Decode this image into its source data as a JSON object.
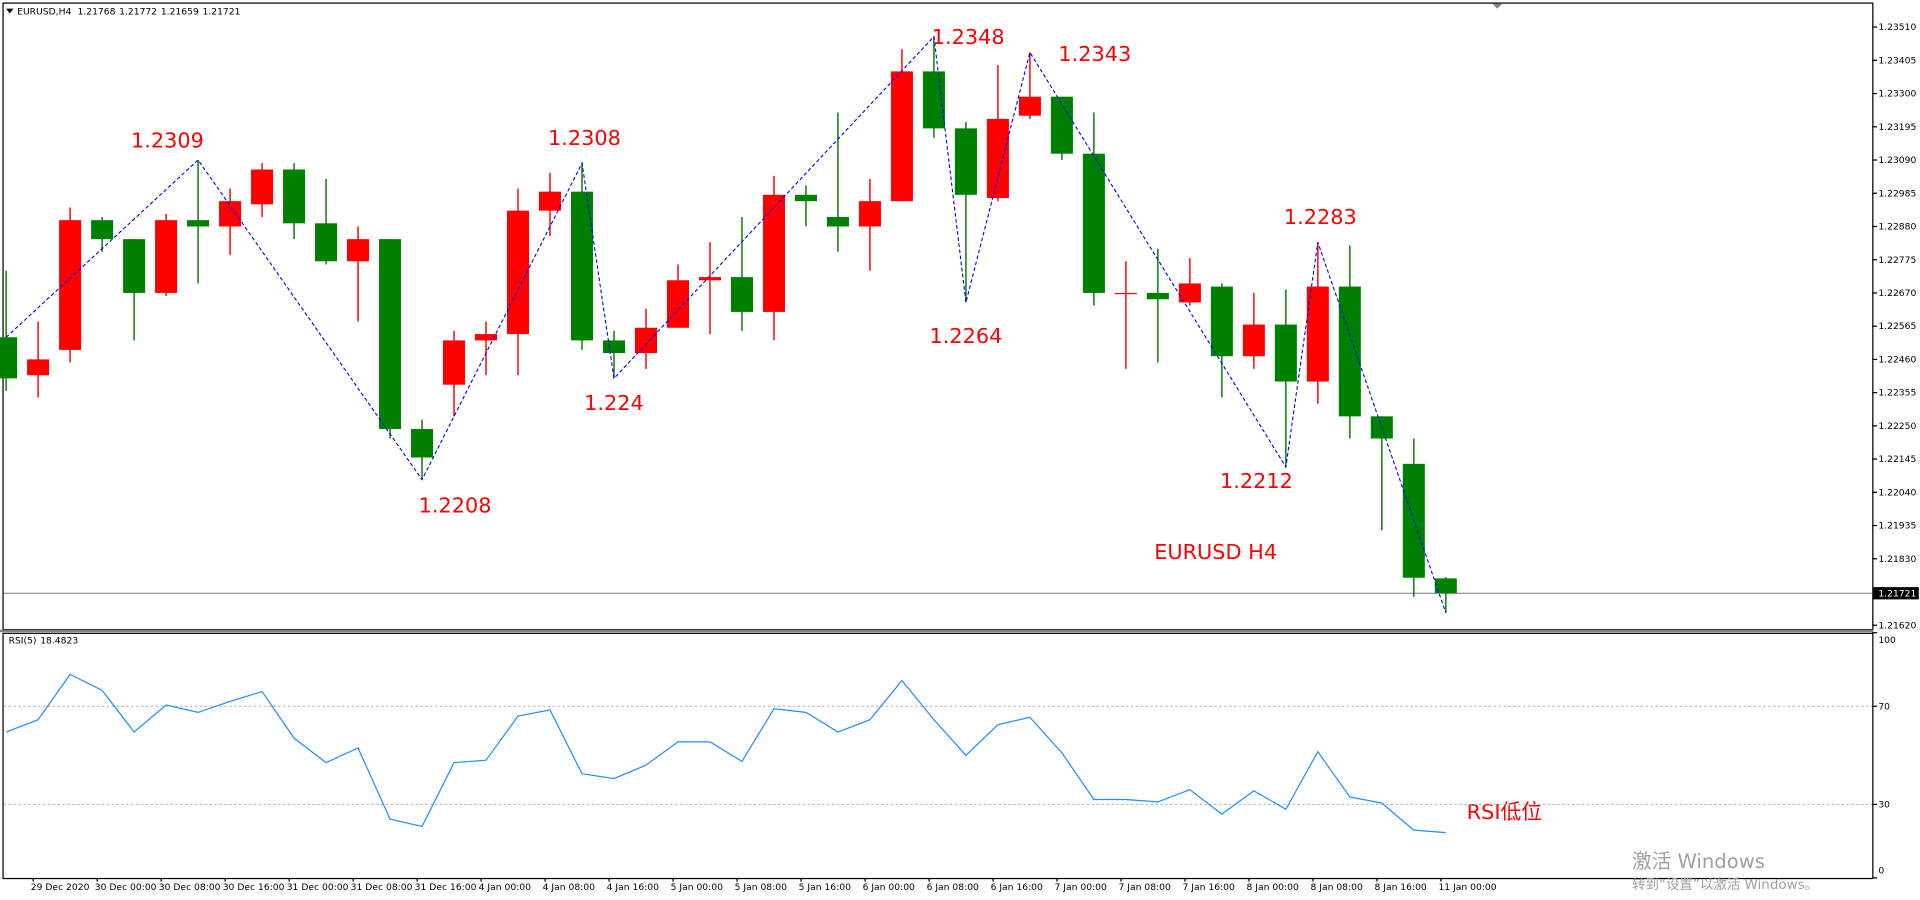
{
  "chart_data": [
    {
      "type": "candlestick",
      "title": "EURUSD,H4",
      "categories": [
        null,
        "29 Dec 2020",
        null,
        "30 Dec 00:00",
        null,
        "30 Dec 08:00",
        null,
        "30 Dec 16:00",
        null,
        "31 Dec 00:00",
        null,
        "31 Dec 08:00",
        null,
        "31 Dec 16:00",
        null,
        "4 Jan 00:00",
        null,
        "4 Jan 08:00",
        null,
        "4 Jan 16:00",
        null,
        "5 Jan 00:00",
        null,
        "5 Jan 08:00",
        null,
        "5 Jan 16:00",
        null,
        "6 Jan 00:00",
        null,
        "6 Jan 08:00",
        null,
        "6 Jan 16:00",
        null,
        "7 Jan 00:00",
        null,
        "7 Jan 08:00",
        null,
        "7 Jan 16:00",
        null,
        "8 Jan 00:00",
        null,
        "8 Jan 08:00",
        null,
        "8 Jan 16:00",
        null,
        "11 Jan 00:00"
      ],
      "open": [
        1.2253,
        1.2241,
        1.2249,
        1.229,
        1.2284,
        1.2267,
        1.229,
        1.2288,
        1.2295,
        1.2306,
        1.2289,
        1.2277,
        1.2284,
        1.2224,
        1.2238,
        1.2252,
        1.2254,
        1.2293,
        1.2299,
        1.2252,
        1.2248,
        1.2256,
        1.2271,
        1.2272,
        1.2261,
        1.2298,
        1.2291,
        1.2288,
        1.2296,
        1.2337,
        1.2319,
        1.2297,
        1.2323,
        1.2329,
        1.2311,
        1.2267,
        1.2267,
        1.2264,
        1.2269,
        1.2247,
        1.2257,
        1.2239,
        1.2269,
        1.2228,
        1.2213,
        1.21768
      ],
      "high": [
        1.2274,
        1.2258,
        1.2294,
        1.2291,
        1.2284,
        1.2292,
        1.2309,
        1.23,
        1.2308,
        1.2308,
        1.2303,
        1.2288,
        1.2284,
        1.2227,
        1.2255,
        1.2258,
        1.23,
        1.2305,
        1.2308,
        1.2255,
        1.2262,
        1.2276,
        1.2283,
        1.2291,
        1.2304,
        1.2301,
        1.2324,
        1.2303,
        1.2344,
        1.2348,
        1.2321,
        1.2339,
        1.2343,
        1.2329,
        1.2324,
        1.2277,
        1.2281,
        1.2278,
        1.227,
        1.2267,
        1.2268,
        1.2283,
        1.2282,
        1.2228,
        1.2221,
        1.21772
      ],
      "low": [
        1.2236,
        1.2234,
        1.2245,
        1.228,
        1.2252,
        1.2266,
        1.227,
        1.2279,
        1.2291,
        1.2284,
        1.2276,
        1.2258,
        1.2221,
        1.2208,
        1.2228,
        1.2241,
        1.2241,
        1.2285,
        1.2249,
        1.224,
        1.2243,
        1.2256,
        1.2254,
        1.2255,
        1.2252,
        1.2288,
        1.228,
        1.2274,
        1.2296,
        1.2316,
        1.2264,
        1.2296,
        1.2322,
        1.2309,
        1.2263,
        1.2243,
        1.2245,
        1.2263,
        1.2234,
        1.2243,
        1.2212,
        1.2232,
        1.2221,
        1.2192,
        1.2171,
        1.21659
      ],
      "close": [
        1.224,
        1.2246,
        1.229,
        1.2284,
        1.2267,
        1.229,
        1.2288,
        1.2296,
        1.2306,
        1.2289,
        1.2277,
        1.2284,
        1.2224,
        1.2215,
        1.2252,
        1.2254,
        1.2293,
        1.2299,
        1.2252,
        1.2248,
        1.2256,
        1.2271,
        1.2272,
        1.2261,
        1.2298,
        1.2296,
        1.2288,
        1.2296,
        1.2337,
        1.2319,
        1.2298,
        1.2322,
        1.2329,
        1.2311,
        1.2267,
        1.2267,
        1.2265,
        1.227,
        1.2247,
        1.2257,
        1.2239,
        1.2269,
        1.2228,
        1.2221,
        1.2177,
        1.21721
      ],
      "up_color": "#ff0000",
      "down_color": "#008000",
      "ylim": [
        1.21608,
        1.23584
      ],
      "yticks": [
        {
          "value": 1.2351,
          "label": "1.23510"
        },
        1.23405,
        {
          "value": 1.233,
          "label": "1.23300"
        },
        1.23195,
        {
          "value": 1.2309,
          "label": "1.23090"
        },
        1.22985,
        {
          "value": 1.2288,
          "label": "1.22880"
        },
        1.22775,
        {
          "value": 1.2267,
          "label": "1.22670"
        },
        1.22565,
        {
          "value": 1.2246,
          "label": "1.22460"
        },
        1.22355,
        {
          "value": 1.2225,
          "label": "1.22250"
        },
        1.22145,
        {
          "value": 1.2204,
          "label": "1.22040"
        },
        1.21935,
        {
          "value": 1.2183,
          "label": "1.21830"
        },
        {
          "value": 1.2162,
          "label": "1.21620"
        }
      ],
      "zigzag": {
        "color": "#0000ff",
        "x": [
          0,
          6,
          13,
          18,
          19,
          29,
          30,
          32,
          40,
          41,
          45
        ],
        "values": [
          1.2253,
          1.2309,
          1.2208,
          1.2308,
          1.224,
          1.2348,
          1.2264,
          1.2343,
          1.2212,
          1.2283,
          1.21659
        ],
        "labeled": [
          false,
          true,
          true,
          true,
          true,
          true,
          true,
          true,
          true,
          true,
          false
        ]
      },
      "annotation": "EURUSD H4"
    },
    {
      "type": "line",
      "title": "RSI(5)",
      "color": "#1e90ff",
      "values": [
        59.5,
        64.5,
        83,
        76.5,
        59.5,
        70.5,
        67.5,
        72,
        76,
        57,
        47,
        53,
        24,
        21,
        47,
        48,
        66,
        68.5,
        42.5,
        40.5,
        46,
        55.5,
        55.5,
        47.5,
        69,
        67.5,
        59.5,
        64.5,
        80.5,
        64.5,
        50,
        62.5,
        65.5,
        51,
        32,
        32,
        31,
        36,
        26,
        35.5,
        28,
        51.5,
        33,
        30.5,
        19.5,
        18.4823
      ],
      "ylim": [
        0,
        100
      ],
      "yticks": [
        100,
        70,
        30,
        0
      ],
      "levels": [
        70,
        30
      ],
      "annotation": "RSI低位"
    }
  ],
  "watermark": {
    "title": "激活 Windows",
    "subtitle": "转到“设置”以激活 Windows。"
  }
}
